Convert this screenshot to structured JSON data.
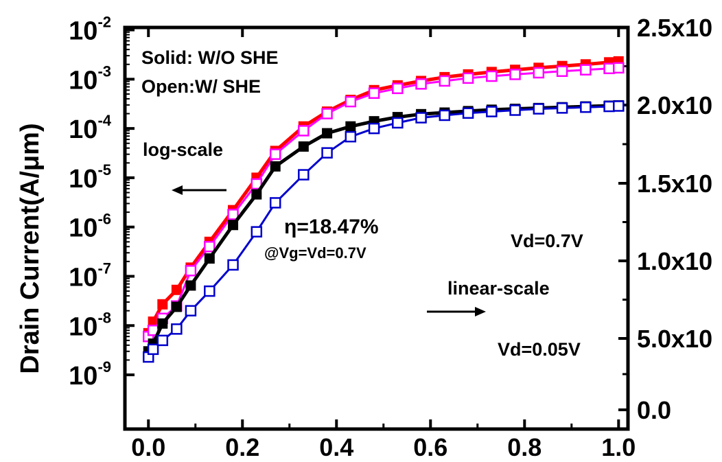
{
  "chart_data": {
    "type": "line",
    "title": "",
    "xlabel": "",
    "ylabel_left": "Drain Current(A/μm)",
    "ylabel_right": "",
    "x_ticks": [
      "0.0",
      "0.2",
      "0.4",
      "0.6",
      "0.8",
      "1.0"
    ],
    "y_left_ticks": [
      {
        "base": "10",
        "exp": "-2"
      },
      {
        "base": "10",
        "exp": "-3"
      },
      {
        "base": "10",
        "exp": "-4"
      },
      {
        "base": "10",
        "exp": "-5"
      },
      {
        "base": "10",
        "exp": "-6"
      },
      {
        "base": "10",
        "exp": "-7"
      },
      {
        "base": "10",
        "exp": "-8"
      },
      {
        "base": "10",
        "exp": "-9"
      }
    ],
    "y_right_ticks": [
      "2.5x10",
      "2.0x10",
      "1.5x10",
      "1.0x10",
      "5.0x10",
      "0.0"
    ],
    "x_range": [
      -0.05,
      1.02
    ],
    "y_left_log_range": [
      -10.1,
      -1.95
    ],
    "y_left_scale": "log",
    "grid": false,
    "annotations": {
      "legend_solid": "Solid: W/O SHE",
      "legend_open": "Open:W/ SHE",
      "log_scale": "log-scale",
      "eta": "η=18.47%",
      "eta_condition": "@Vg=Vd=0.7V",
      "vd_high": "Vd=0.7V",
      "linear_scale": "linear-scale",
      "vd_low": "Vd=0.05V"
    },
    "series": [
      {
        "marker": "filled-square",
        "color": "#ff0000",
        "x": [
          0,
          0.01,
          0.03,
          0.06,
          0.09,
          0.13,
          0.18,
          0.23,
          0.27,
          0.33,
          0.38,
          0.43,
          0.48,
          0.53,
          0.58,
          0.63,
          0.68,
          0.73,
          0.78,
          0.83,
          0.88,
          0.93,
          0.98,
          1.0
        ],
        "y": [
          7e-09,
          1.2e-08,
          2.7e-08,
          5.3e-08,
          1.5e-07,
          5e-07,
          2.2e-06,
          1e-05,
          3.5e-05,
          0.00011,
          0.00022,
          0.00038,
          0.0006,
          0.00075,
          0.00092,
          0.0011,
          0.00125,
          0.0014,
          0.00155,
          0.0017,
          0.00185,
          0.002,
          0.0022,
          0.0023
        ]
      },
      {
        "marker": "open-square",
        "color": "#ff00ff",
        "x": [
          0,
          0.01,
          0.03,
          0.06,
          0.09,
          0.13,
          0.18,
          0.23,
          0.27,
          0.33,
          0.38,
          0.43,
          0.48,
          0.53,
          0.58,
          0.63,
          0.68,
          0.73,
          0.78,
          0.83,
          0.88,
          0.93,
          0.98,
          1.0
        ],
        "y": [
          6e-09,
          8e-09,
          1.4e-08,
          2.5e-08,
          1.3e-07,
          4e-07,
          1.8e-06,
          7.5e-06,
          3e-05,
          9e-05,
          0.0002,
          0.00035,
          0.00052,
          0.00065,
          0.0008,
          0.00092,
          0.00105,
          0.00115,
          0.00125,
          0.00135,
          0.00145,
          0.00155,
          0.00165,
          0.0017
        ]
      },
      {
        "marker": "filled-square",
        "color": "#000000",
        "x": [
          0,
          0.01,
          0.03,
          0.06,
          0.09,
          0.13,
          0.18,
          0.23,
          0.27,
          0.33,
          0.38,
          0.43,
          0.48,
          0.53,
          0.58,
          0.63,
          0.68,
          0.73,
          0.78,
          0.83,
          0.88,
          0.93,
          0.98,
          1.0
        ],
        "y": [
          3e-09,
          4.3e-09,
          1.1e-08,
          2.4e-08,
          6.5e-08,
          2.3e-07,
          1.1e-06,
          4.6e-06,
          1.7e-05,
          4.3e-05,
          8e-05,
          0.00011,
          0.00014,
          0.00017,
          0.000195,
          0.00021,
          0.000225,
          0.00024,
          0.00025,
          0.00026,
          0.00027,
          0.00028,
          0.00029,
          0.000295
        ]
      },
      {
        "marker": "open-square",
        "color": "#0000cc",
        "x": [
          0,
          0.01,
          0.03,
          0.06,
          0.09,
          0.13,
          0.18,
          0.23,
          0.27,
          0.33,
          0.38,
          0.43,
          0.48,
          0.53,
          0.58,
          0.63,
          0.68,
          0.73,
          0.78,
          0.83,
          0.88,
          0.93,
          0.98,
          1.0
        ],
        "y": [
          2.3e-09,
          3.3e-09,
          5e-09,
          8.5e-09,
          2e-08,
          5e-08,
          1.7e-07,
          8e-07,
          3.1e-06,
          1.15e-05,
          3.2e-05,
          6.8e-05,
          0.0001,
          0.00013,
          0.000165,
          0.000185,
          0.000205,
          0.00022,
          0.000235,
          0.00025,
          0.00026,
          0.00027,
          0.00028,
          0.000285
        ]
      }
    ]
  }
}
